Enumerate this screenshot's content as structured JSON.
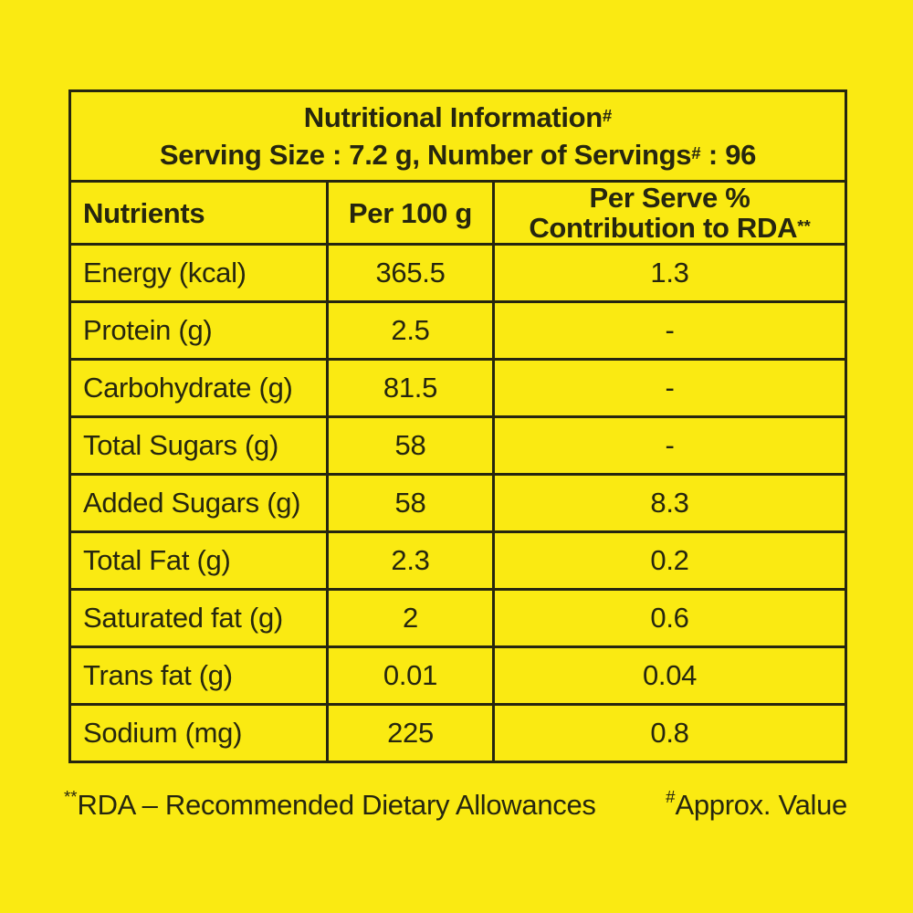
{
  "page": {
    "background_color": "#FAEA12",
    "ink_color": "#26260f"
  },
  "table": {
    "title": {
      "line1": "Nutritional Information",
      "line1_sup": "#",
      "line2_prefix": "Serving Size : 7.2 g, Number of Servings",
      "line2_sup": "#",
      "line2_suffix": " : 96"
    },
    "columns": {
      "nutrients": "Nutrients",
      "per_100g": "Per 100 g",
      "rda_line1": "Per Serve %",
      "rda_line2": "Contribution to RDA",
      "rda_sup": "**"
    },
    "rows": [
      {
        "name": "Energy (kcal)",
        "per_100g": "365.5",
        "rda_percent": "1.3"
      },
      {
        "name": "Protein (g)",
        "per_100g": "2.5",
        "rda_percent": "-"
      },
      {
        "name": "Carbohydrate (g)",
        "per_100g": "81.5",
        "rda_percent": "-"
      },
      {
        "name": "Total Sugars (g)",
        "per_100g": "58",
        "rda_percent": "-"
      },
      {
        "name": "Added Sugars (g)",
        "per_100g": "58",
        "rda_percent": "8.3"
      },
      {
        "name": "Total Fat (g)",
        "per_100g": "2.3",
        "rda_percent": "0.2"
      },
      {
        "name": "Saturated fat (g)",
        "per_100g": "2",
        "rda_percent": "0.6"
      },
      {
        "name": "Trans fat (g)",
        "per_100g": "0.01",
        "rda_percent": "0.04"
      },
      {
        "name": "Sodium (mg)",
        "per_100g": "225",
        "rda_percent": "0.8"
      }
    ]
  },
  "footnotes": {
    "rda_sup": "**",
    "rda_text": "RDA – Recommended Dietary Allowances",
    "approx_sup": "#",
    "approx_text": "Approx. Value"
  }
}
